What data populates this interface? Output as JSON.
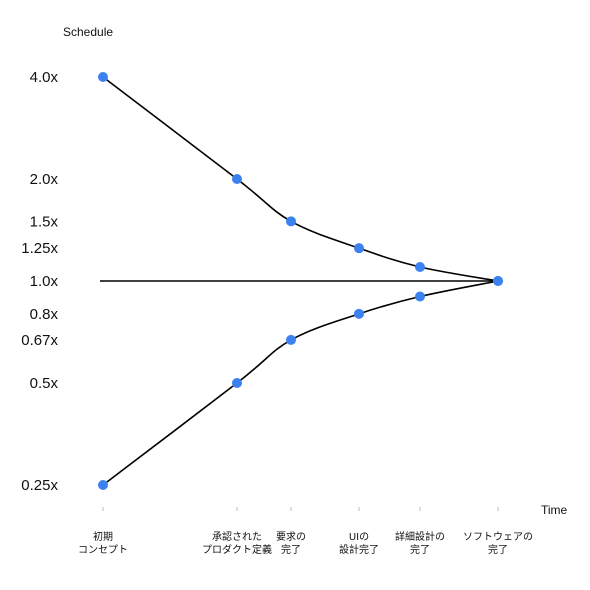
{
  "chart_data": {
    "type": "line",
    "title": "",
    "ylabel": "Schedule",
    "xlabel": "Time",
    "y_scale": "log",
    "y_ticks": [
      {
        "value": 4.0,
        "label": "4.0x"
      },
      {
        "value": 2.0,
        "label": "2.0x"
      },
      {
        "value": 1.5,
        "label": "1.5x"
      },
      {
        "value": 1.25,
        "label": "1.25x"
      },
      {
        "value": 1.0,
        "label": "1.0x"
      },
      {
        "value": 0.8,
        "label": "0.8x"
      },
      {
        "value": 0.67,
        "label": "0.67x"
      },
      {
        "value": 0.5,
        "label": "0.5x"
      },
      {
        "value": 0.25,
        "label": "0.25x"
      }
    ],
    "categories": [
      [
        "初期",
        "コンセプト"
      ],
      [
        "承認された",
        "プロダクト定義"
      ],
      [
        "要求の",
        "完了"
      ],
      [
        "UIの",
        "設計完了"
      ],
      [
        "詳細設計の",
        "完了"
      ],
      [
        "ソフトウェアの",
        "完了"
      ]
    ],
    "x": [
      0,
      1,
      2,
      3,
      4,
      5
    ],
    "series": [
      {
        "values": [
          4.0,
          2.0,
          1.5,
          1.25,
          1.1,
          1.0
        ]
      },
      {
        "values": [
          0.25,
          0.5,
          0.67,
          0.8,
          0.9,
          1.0
        ]
      }
    ],
    "baseline": 1.0,
    "grid": false,
    "colors": {
      "marker": "#3b82f0",
      "line": "#000000",
      "text": "#111111"
    }
  }
}
